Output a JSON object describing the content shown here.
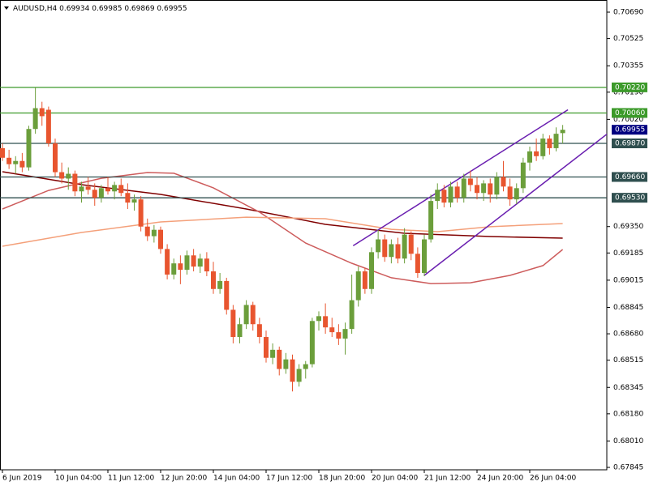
{
  "chart_data": {
    "type": "candlestick",
    "title": "AUDUSD,H4",
    "up_color": "#6b9e3b",
    "down_color": "#e8552f",
    "categories": [
      "6 Jun 2019",
      null,
      null,
      null,
      null,
      null,
      null,
      null,
      "10 Jun 04:00",
      null,
      null,
      null,
      null,
      null,
      null,
      null,
      "11 Jun 12:00",
      null,
      null,
      null,
      null,
      null,
      null,
      null,
      "12 Jun 20:00",
      null,
      null,
      null,
      null,
      null,
      null,
      null,
      "14 Jun 04:00",
      null,
      null,
      null,
      null,
      null,
      null,
      null,
      "17 Jun 12:00",
      null,
      null,
      null,
      null,
      null,
      null,
      null,
      "18 Jun 20:00",
      null,
      null,
      null,
      null,
      null,
      null,
      null,
      "20 Jun 04:00",
      null,
      null,
      null,
      null,
      null,
      null,
      null,
      "21 Jun 12:00",
      null,
      null,
      null,
      null,
      null,
      null,
      null,
      "24 Jun 20:00",
      null,
      null,
      null,
      null,
      null,
      null,
      null,
      "26 Jun 04:00",
      null,
      null,
      null,
      null,
      null
    ],
    "open": [
      0.6984,
      0.6978,
      0.6974,
      0.6976,
      0.6972,
      0.6996,
      0.7009,
      0.7008,
      0.6987,
      0.6969,
      0.6965,
      0.6968,
      0.6957,
      0.696,
      0.6958,
      0.6953,
      0.6959,
      0.6957,
      0.6961,
      0.6956,
      0.695,
      0.6952,
      0.6935,
      0.6929,
      0.6933,
      0.6921,
      0.6905,
      0.6912,
      0.6908,
      0.6917,
      0.691,
      0.6915,
      0.6907,
      0.6896,
      0.6901,
      0.6883,
      0.6866,
      0.6874,
      0.6886,
      0.6874,
      0.6866,
      0.6853,
      0.6858,
      0.6846,
      0.6852,
      0.6838,
      0.6846,
      0.6849,
      0.6876,
      0.6879,
      0.6872,
      0.6869,
      0.6865,
      0.6871,
      0.6889,
      0.6907,
      0.6896,
      0.6919,
      0.6927,
      0.6916,
      0.6924,
      0.6915,
      0.693,
      0.6918,
      0.6906,
      0.6927,
      0.6951,
      0.6958,
      0.695,
      0.696,
      0.6953,
      0.6965,
      0.6961,
      0.6956,
      0.6962,
      0.6955,
      0.6966,
      0.696,
      0.6952,
      0.6959,
      0.6975,
      0.6982,
      0.6979,
      0.699,
      0.6984,
      0.69934
    ],
    "high": [
      0.6987,
      0.6983,
      0.6979,
      0.6981,
      0.6998,
      0.7022,
      0.7013,
      0.701,
      0.699,
      0.6975,
      0.6972,
      0.697,
      0.6963,
      0.6966,
      0.6962,
      0.6961,
      0.6966,
      0.6963,
      0.6965,
      0.6962,
      0.6955,
      0.6954,
      0.694,
      0.6936,
      0.6935,
      0.6924,
      0.6915,
      0.6917,
      0.692,
      0.6921,
      0.6918,
      0.6919,
      0.6913,
      0.6906,
      0.6903,
      0.6886,
      0.6878,
      0.6889,
      0.6888,
      0.6878,
      0.687,
      0.6862,
      0.686,
      0.6856,
      0.6855,
      0.6849,
      0.6851,
      0.6878,
      0.6882,
      0.6887,
      0.6878,
      0.6874,
      0.6875,
      0.6905,
      0.691,
      0.6909,
      0.6922,
      0.6933,
      0.693,
      0.6927,
      0.6928,
      0.6934,
      0.6932,
      0.6922,
      0.693,
      0.6955,
      0.6962,
      0.6961,
      0.6963,
      0.6963,
      0.6968,
      0.697,
      0.6966,
      0.6964,
      0.6965,
      0.6969,
      0.6976,
      0.6965,
      0.6962,
      0.6978,
      0.6985,
      0.699,
      0.6993,
      0.6992,
      0.6997,
      0.69985
    ],
    "low": [
      0.6976,
      0.6971,
      0.6968,
      0.6969,
      0.697,
      0.6993,
      0.6998,
      0.6985,
      0.6966,
      0.6962,
      0.6958,
      0.6954,
      0.695,
      0.6955,
      0.6948,
      0.695,
      0.6955,
      0.6952,
      0.6954,
      0.6946,
      0.6945,
      0.6932,
      0.6926,
      0.6925,
      0.6918,
      0.6902,
      0.6902,
      0.6899,
      0.6905,
      0.6907,
      0.6906,
      0.6904,
      0.6893,
      0.6893,
      0.688,
      0.6862,
      0.6862,
      0.6871,
      0.687,
      0.6862,
      0.685,
      0.6849,
      0.6842,
      0.6843,
      0.6832,
      0.6835,
      0.684,
      0.6847,
      0.687,
      0.6868,
      0.6866,
      0.6861,
      0.6855,
      0.6868,
      0.6885,
      0.6893,
      0.6893,
      0.6915,
      0.6913,
      0.6912,
      0.6912,
      0.6912,
      0.6914,
      0.6903,
      0.6904,
      0.6925,
      0.6946,
      0.6947,
      0.6947,
      0.695,
      0.695,
      0.6957,
      0.6952,
      0.6951,
      0.695,
      0.6952,
      0.6957,
      0.6948,
      0.6949,
      0.6956,
      0.697,
      0.6976,
      0.6977,
      0.698,
      0.6982,
      0.69869
    ],
    "close": [
      0.6978,
      0.6974,
      0.6976,
      0.6972,
      0.6996,
      0.7009,
      0.7004,
      0.6987,
      0.6969,
      0.6965,
      0.6968,
      0.6957,
      0.696,
      0.6958,
      0.6953,
      0.6959,
      0.6957,
      0.6961,
      0.6956,
      0.695,
      0.6952,
      0.6935,
      0.6929,
      0.6933,
      0.6921,
      0.6905,
      0.6912,
      0.6908,
      0.6917,
      0.691,
      0.6915,
      0.6907,
      0.6896,
      0.6901,
      0.6883,
      0.6866,
      0.6874,
      0.6886,
      0.6874,
      0.6866,
      0.6853,
      0.6858,
      0.6846,
      0.6852,
      0.6838,
      0.6846,
      0.6849,
      0.6876,
      0.6879,
      0.6872,
      0.6869,
      0.6865,
      0.6871,
      0.6889,
      0.6907,
      0.6896,
      0.6919,
      0.6927,
      0.6916,
      0.6924,
      0.6915,
      0.693,
      0.6918,
      0.6906,
      0.6927,
      0.6951,
      0.6958,
      0.695,
      0.696,
      0.6953,
      0.6965,
      0.6961,
      0.6956,
      0.6962,
      0.6955,
      0.6966,
      0.696,
      0.6952,
      0.6959,
      0.6975,
      0.6982,
      0.6979,
      0.699,
      0.6984,
      0.6993,
      0.69955
    ],
    "ylim": [
      0.6783,
      0.70766
    ],
    "yticks": [
      {
        "value": 0.7069,
        "label": "0.70690"
      },
      0.70525,
      0.70355,
      {
        "value": 0.7019,
        "label": "0.70190"
      },
      {
        "value": 0.7002,
        "label": "0.70020"
      },
      {
        "value": 0.6935,
        "label": "0.69350"
      },
      0.69185,
      0.69015,
      0.68845,
      {
        "value": 0.6868,
        "label": "0.68680"
      },
      0.68515,
      0.68345,
      {
        "value": 0.6818,
        "label": "0.68180"
      },
      {
        "value": 0.6801,
        "label": "0.68010"
      },
      0.67845
    ],
    "levels": [
      {
        "value": 0.7022,
        "label": "0.70220",
        "color": "#3c9a2a"
      },
      {
        "value": 0.7006,
        "label": "0.70060",
        "color": "#3c9a2a"
      },
      {
        "value": 0.6987,
        "label": "0.69870",
        "color": "#2f4f4f"
      },
      {
        "value": 0.6966,
        "label": "0.69660",
        "color": "#2f4f4f"
      },
      {
        "value": 0.6953,
        "label": "0.69530",
        "color": "#2f4f4f"
      }
    ],
    "price_label_color": "#000080",
    "moving_averages": [
      {
        "color": "#800000",
        "x": [
          0,
          12,
          24,
          37,
          49,
          61,
          74,
          85
        ],
        "values": [
          0.69693,
          0.69612,
          0.69551,
          0.6946,
          0.69364,
          0.69308,
          0.69288,
          0.69278
        ]
      },
      {
        "color": "#cd5c5c",
        "x": [
          0,
          7,
          15,
          22,
          26,
          32,
          39,
          46,
          53,
          59,
          65,
          71,
          77,
          82,
          85
        ],
        "values": [
          0.6946,
          0.69576,
          0.69652,
          0.69688,
          0.69683,
          0.69592,
          0.6944,
          0.69247,
          0.69121,
          0.6903,
          0.68994,
          0.68999,
          0.69045,
          0.69106,
          0.69207
        ]
      },
      {
        "color": "#f4a07a",
        "x": [
          0,
          12,
          24,
          37,
          49,
          59,
          66,
          74,
          85
        ],
        "values": [
          0.69227,
          0.69313,
          0.69379,
          0.69409,
          0.69399,
          0.69333,
          0.69318,
          0.69349,
          0.69369
        ]
      }
    ],
    "trendlines": [
      {
        "color": "#6a1fb0",
        "x": [
          53.2,
          85.8
        ],
        "values": [
          0.6923,
          0.7008
        ]
      },
      {
        "color": "#6a1fb0",
        "x": [
          64,
          92.6
        ],
        "values": [
          0.69045,
          0.69956
        ]
      }
    ]
  }
}
